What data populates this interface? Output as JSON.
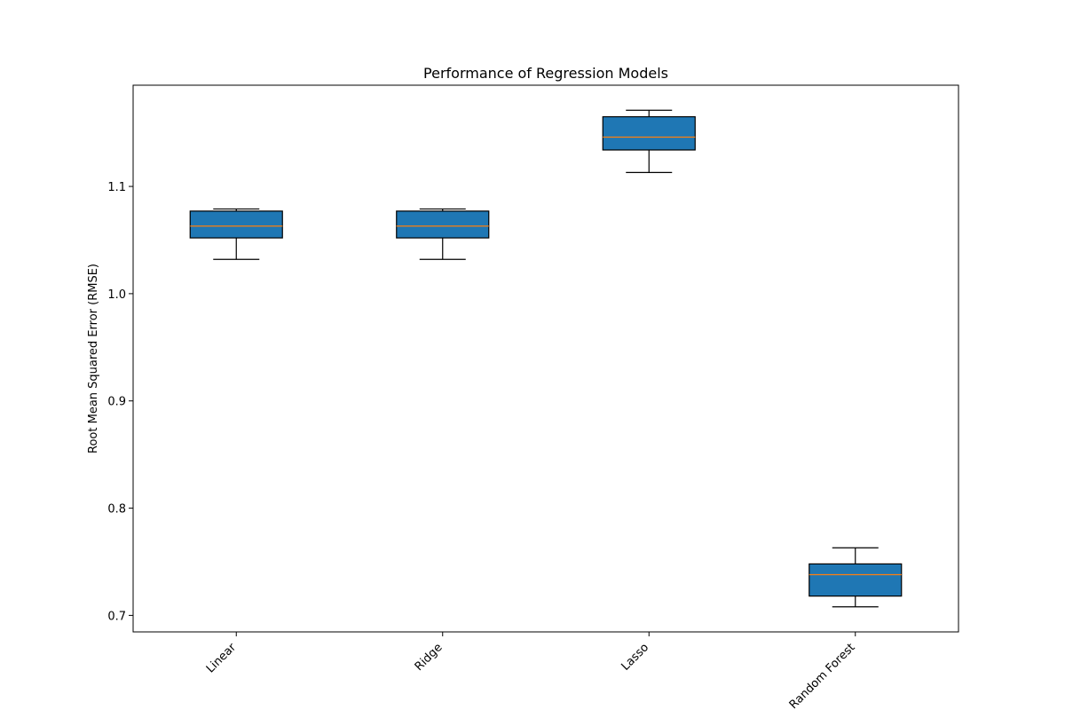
{
  "chart_data": {
    "type": "boxplot",
    "title": "Performance of Regression Models",
    "xlabel": "",
    "ylabel": "Root Mean Squared Error (RMSE)",
    "categories": [
      "Linear",
      "Ridge",
      "Lasso",
      "Random Forest"
    ],
    "boxes": [
      {
        "category": "Linear",
        "whisker_low": 1.032,
        "q1": 1.052,
        "median": 1.063,
        "q3": 1.077,
        "whisker_high": 1.079
      },
      {
        "category": "Ridge",
        "whisker_low": 1.032,
        "q1": 1.052,
        "median": 1.063,
        "q3": 1.077,
        "whisker_high": 1.079
      },
      {
        "category": "Lasso",
        "whisker_low": 1.113,
        "q1": 1.134,
        "median": 1.146,
        "q3": 1.165,
        "whisker_high": 1.171
      },
      {
        "category": "Random Forest",
        "whisker_low": 0.708,
        "q1": 0.718,
        "median": 0.738,
        "q3": 0.748,
        "whisker_high": 0.763
      }
    ],
    "yticks": [
      0.7,
      0.8,
      0.9,
      1.0,
      1.1
    ],
    "ytick_labels": [
      "0.7",
      "0.8",
      "0.9",
      "1.0",
      "1.1"
    ],
    "ylim": [
      0.6846,
      1.1944
    ],
    "xtick_rotation": 45,
    "grid": false,
    "legend": "none",
    "colors": {
      "box_fill": "#1f77b4",
      "median": "#ff7f0e",
      "edge": "#000000"
    }
  }
}
